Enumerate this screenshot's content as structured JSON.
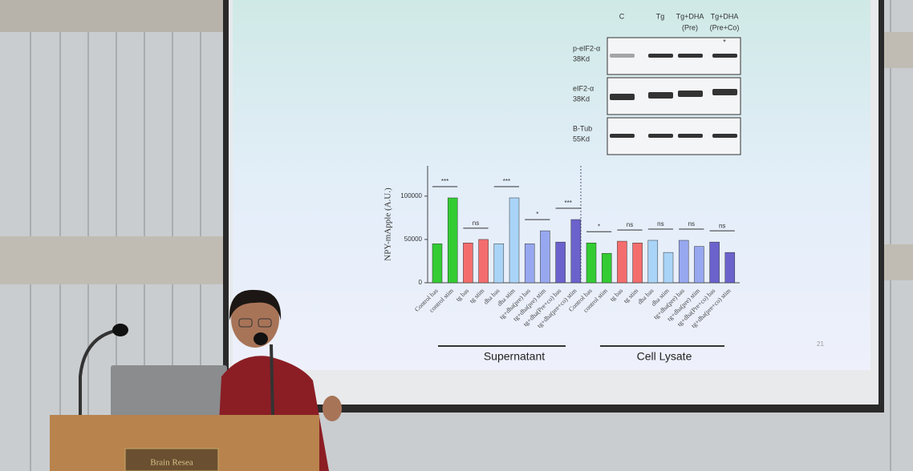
{
  "chart_data": {
    "type": "bar",
    "y_label": "NPY-mApple (A.U.)",
    "categories": [
      "Control bas",
      "control stim",
      "tg bas",
      "tg stim",
      "dha bas",
      "dha stim",
      "tg+dha(pre) bas",
      "tg+dha(pre) stim",
      "tg+dha(Pre+co) bas",
      "tg+dha(pre+co) stim",
      "Control bas",
      "control stim",
      "tg bas",
      "tg stim",
      "dha bas",
      "dha stim",
      "tg+dha(pre) bas",
      "tg+dha(pre) stim",
      "tg+dha(Pre+co) bas",
      "tg+dha(pre+co) stim"
    ],
    "values": [
      45000,
      98000,
      46000,
      50000,
      45000,
      98000,
      45000,
      60000,
      47000,
      73000,
      46000,
      34000,
      48000,
      46000,
      49000,
      35000,
      49000,
      42000,
      47000,
      35000
    ],
    "colors": [
      "#33cc33",
      "#33cc33",
      "#f46d6d",
      "#f46d6d",
      "#a9d4f7",
      "#a9d4f7",
      "#97a8f0",
      "#97a8f0",
      "#6c62cc",
      "#6c62cc",
      "#33cc33",
      "#33cc33",
      "#f46d6d",
      "#f46d6d",
      "#a9d4f7",
      "#a9d4f7",
      "#97a8f0",
      "#97a8f0",
      "#6c62cc",
      "#6c62cc"
    ],
    "ylim": [
      0,
      135000
    ],
    "yticks": [
      0,
      50000,
      100000
    ],
    "annotations": [
      "***",
      "ns",
      "***",
      "*",
      "***",
      "*",
      "ns",
      "ns",
      "ns",
      "ns"
    ],
    "groups": [
      "Supernatant",
      "Cell Lysate"
    ]
  },
  "blot": {
    "columns": [
      [
        "C"
      ],
      [
        "Tg"
      ],
      [
        "Tg+DHA",
        "(Pre)"
      ],
      [
        "Tg+DHA",
        "(Pre+Co)"
      ]
    ],
    "rows": [
      [
        "p-eIF2-α",
        "38Kd"
      ],
      [
        "eIF2-α",
        "38Kd"
      ],
      [
        "B-Tub",
        "55Kd"
      ]
    ],
    "mark": "*"
  },
  "slide_number": "21",
  "podium_sign": "Brain Resea"
}
